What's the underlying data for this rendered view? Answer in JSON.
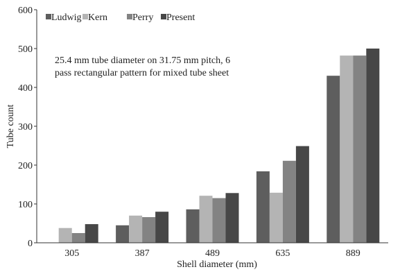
{
  "chart_data": {
    "type": "bar",
    "title": "",
    "xlabel": "Shell diameter (mm)",
    "ylabel": "Tube count",
    "categories": [
      "305",
      "387",
      "489",
      "635",
      "889"
    ],
    "ylim": [
      0,
      600
    ],
    "yticks": [
      0,
      100,
      200,
      300,
      400,
      500,
      600
    ],
    "grid": false,
    "legend_position": "top-left",
    "annotation": [
      "25.4 mm tube diameter on 31.75 mm pitch, 6",
      "pass rectangular pattern for mixed tube sheet"
    ],
    "series": [
      {
        "name": "Ludwig",
        "color": "#5e5e5e",
        "values": [
          0,
          45,
          86,
          184,
          430
        ]
      },
      {
        "name": "Kern",
        "color": "#b4b4b4",
        "values": [
          38,
          70,
          121,
          129,
          482
        ]
      },
      {
        "name": "Perry",
        "color": "#838383",
        "values": [
          25,
          66,
          115,
          211,
          482
        ]
      },
      {
        "name": "Present",
        "color": "#474747",
        "values": [
          48,
          80,
          128,
          249,
          500
        ]
      }
    ]
  }
}
